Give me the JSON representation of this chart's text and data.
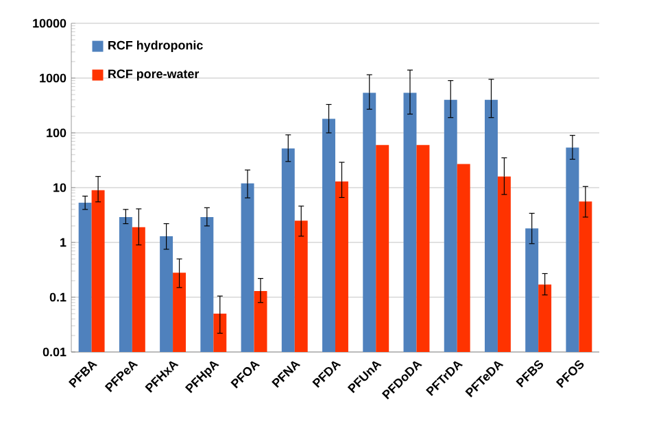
{
  "chart_data": {
    "type": "bar",
    "log": "y",
    "grid": "y",
    "legend": "top left",
    "categories": [
      "PFBA",
      "PFPeA",
      "PFHxA",
      "PFHpA",
      "PFOA",
      "PFNA",
      "PFDA",
      "PFUnA",
      "PFDoDA",
      "PFTrDA",
      "PFTeDA",
      "PFBS",
      "PFOS"
    ],
    "series": [
      {
        "name": "RCF hydroponic",
        "color": "#4f81bd",
        "values": [
          5.3,
          2.9,
          1.3,
          2.9,
          12,
          52,
          180,
          540,
          540,
          400,
          400,
          1.8,
          54
        ],
        "errors": [
          [
            4,
            7
          ],
          [
            2.2,
            4
          ],
          [
            0.75,
            2.2
          ],
          [
            2,
            4.3
          ],
          [
            6.5,
            21
          ],
          [
            30,
            92
          ],
          [
            100,
            330
          ],
          [
            270,
            1150
          ],
          [
            220,
            1400
          ],
          [
            190,
            900
          ],
          [
            190,
            950
          ],
          [
            0.95,
            3.4
          ],
          [
            33,
            90
          ]
        ]
      },
      {
        "name": "RCF pore-water",
        "color": "#ff3300",
        "values": [
          9,
          1.9,
          0.28,
          0.05,
          0.13,
          2.5,
          13,
          60,
          60,
          27,
          16,
          0.17,
          5.6
        ],
        "errors": [
          [
            5.5,
            16
          ],
          [
            0.9,
            4.1
          ],
          [
            0.15,
            0.5
          ],
          [
            0.022,
            0.105
          ],
          [
            0.08,
            0.22
          ],
          [
            1.3,
            4.6
          ],
          [
            6.6,
            29
          ],
          null,
          null,
          null,
          [
            7.5,
            35
          ],
          [
            0.11,
            0.27
          ],
          [
            2.9,
            10.5
          ]
        ]
      }
    ],
    "ylim": [
      0.01,
      10000
    ],
    "yticks": [
      0.01,
      0.1,
      1,
      10,
      100,
      1000,
      10000
    ]
  }
}
